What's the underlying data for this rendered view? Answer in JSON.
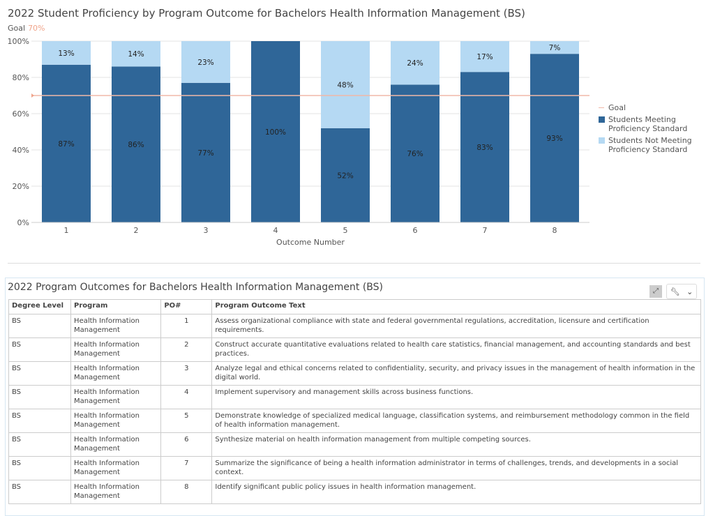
{
  "chart_data": {
    "type": "bar",
    "stacked": true,
    "title": "2022 Student Proficiency by Program Outcome for Bachelors Health Information Management (BS)",
    "goal_label": "Goal",
    "goal_value": "70%",
    "goal": 70,
    "xlabel": "Outcome Number",
    "ylabel": "",
    "ylim": [
      0,
      100
    ],
    "yticks": [
      "0%",
      "20%",
      "40%",
      "60%",
      "80%",
      "100%"
    ],
    "categories": [
      "1",
      "2",
      "3",
      "4",
      "5",
      "6",
      "7",
      "8"
    ],
    "series": [
      {
        "name": "Students Meeting Proficiency Standard",
        "color": "#2f6698",
        "values": [
          87,
          86,
          77,
          100,
          52,
          76,
          83,
          93
        ]
      },
      {
        "name": "Students Not Meeting Proficiency Standard",
        "color": "#b5d9f3",
        "values": [
          13,
          14,
          23,
          0,
          48,
          24,
          17,
          7
        ]
      }
    ],
    "goal_series_name": "Goal",
    "goal_color": "#f0b8a8",
    "grid": true,
    "legend": "right"
  },
  "table_panel": {
    "title": "2022 Program Outcomes for Bachelors Health Information Management (BS)",
    "expand_icon": "expand-icon",
    "tool_icon": "wrench-icon",
    "headers": [
      "Degree Level",
      "Program",
      "PO#",
      "Program Outcome Text"
    ],
    "rows": [
      [
        "BS",
        "Health Information Management",
        "1",
        "Assess organizational compliance with state and federal governmental regulations, accreditation, licensure and certification requirements."
      ],
      [
        "BS",
        "Health Information Management",
        "2",
        "Construct accurate quantitative evaluations related to health care statistics, financial management, and accounting standards and best practices."
      ],
      [
        "BS",
        "Health Information Management",
        "3",
        "Analyze legal and ethical concerns related to confidentiality, security, and privacy issues in the management of health information in the digital world."
      ],
      [
        "BS",
        "Health Information Management",
        "4",
        "Implement supervisory and management skills across business functions."
      ],
      [
        "BS",
        "Health Information Management",
        "5",
        "Demonstrate knowledge of specialized medical language, classification systems, and reimbursement methodology common in the field of health information management."
      ],
      [
        "BS",
        "Health Information Management",
        "6",
        "Synthesize material on health information management from multiple competing sources."
      ],
      [
        "BS",
        "Health Information Management",
        "7",
        "Summarize the significance of being a health information administrator in terms of challenges, trends, and developments in a social context."
      ],
      [
        "BS",
        "Health Information Management",
        "8",
        "Identify significant public policy issues in health information management."
      ]
    ]
  }
}
